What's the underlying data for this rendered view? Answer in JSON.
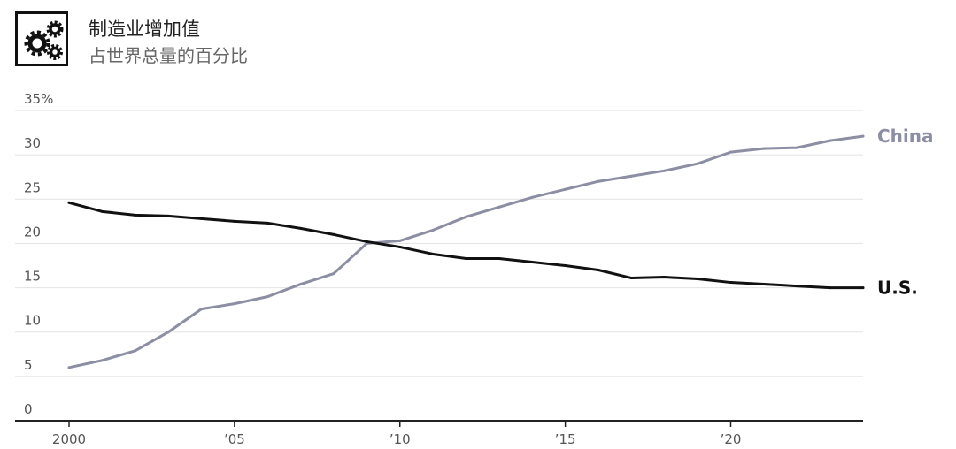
{
  "header": {
    "title": "制造业增加值",
    "subtitle": "占世界总量的百分比",
    "icon": "gears-icon"
  },
  "colors": {
    "china": "#8c8ea3",
    "us": "#111111",
    "grid": "#e2e2e2",
    "axis": "#222222"
  },
  "chart_data": {
    "type": "line",
    "x": [
      2000,
      2001,
      2002,
      2003,
      2004,
      2005,
      2006,
      2007,
      2008,
      2009,
      2010,
      2011,
      2012,
      2013,
      2014,
      2015,
      2016,
      2017,
      2018,
      2019,
      2020,
      2021,
      2022,
      2023,
      2024
    ],
    "series": [
      {
        "name": "China",
        "values": [
          6.0,
          6.8,
          7.9,
          10.0,
          12.6,
          13.2,
          14.0,
          15.4,
          16.6,
          20.0,
          20.3,
          21.5,
          23.0,
          24.1,
          25.2,
          26.1,
          27.0,
          27.6,
          28.2,
          29.0,
          30.3,
          30.7,
          30.8,
          31.6,
          32.1
        ]
      },
      {
        "name": "U.S.",
        "values": [
          24.6,
          23.6,
          23.2,
          23.1,
          22.8,
          22.5,
          22.3,
          21.7,
          21.0,
          20.2,
          19.6,
          18.8,
          18.3,
          18.3,
          17.9,
          17.5,
          17.0,
          16.1,
          16.2,
          16.0,
          15.6,
          15.4,
          15.2,
          15.0,
          15.0
        ]
      }
    ],
    "xlim": [
      2000,
      2024
    ],
    "ylim": [
      0,
      35
    ],
    "y_ticks": [
      {
        "value": 35,
        "label": "35%"
      },
      {
        "value": 30,
        "label": "30"
      },
      {
        "value": 25,
        "label": "25"
      },
      {
        "value": 20,
        "label": "20"
      },
      {
        "value": 15,
        "label": "15"
      },
      {
        "value": 10,
        "label": "10"
      },
      {
        "value": 5,
        "label": "5"
      },
      {
        "value": 0,
        "label": "0"
      }
    ],
    "x_ticks": [
      {
        "value": 2000,
        "label": "2000"
      },
      {
        "value": 2005,
        "label": "’05"
      },
      {
        "value": 2010,
        "label": "’10"
      },
      {
        "value": 2015,
        "label": "’15"
      },
      {
        "value": 2020,
        "label": "’20"
      }
    ],
    "grid": true,
    "legend": "direct labels at line ends"
  }
}
